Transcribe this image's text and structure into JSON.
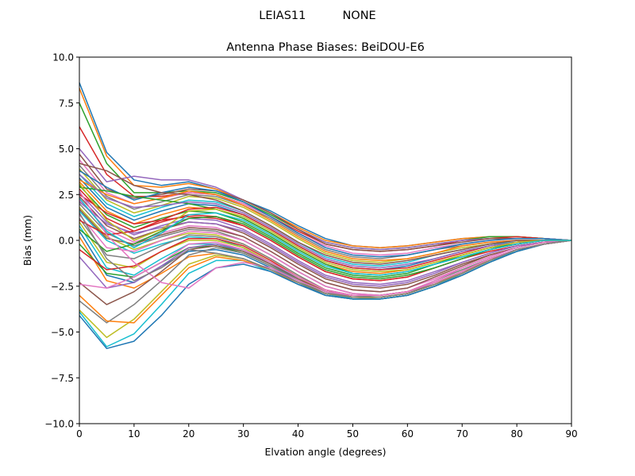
{
  "suptitle": "LEIAS11          NONE",
  "chart_data": {
    "type": "line",
    "title": "Antenna Phase Biases: BeiDOU-E6",
    "xlabel": "Elvation angle (degrees)",
    "ylabel": "Bias (mm)",
    "xlim": [
      0,
      90
    ],
    "ylim": [
      -10,
      10
    ],
    "xticks": [
      0,
      10,
      20,
      30,
      40,
      50,
      60,
      70,
      80,
      90
    ],
    "xtick_labels": [
      "0",
      "10",
      "20",
      "30",
      "40",
      "50",
      "60",
      "70",
      "80",
      "90"
    ],
    "yticks": [
      -10,
      -7.5,
      -5,
      -2.5,
      0,
      2.5,
      5,
      7.5,
      10
    ],
    "ytick_labels": [
      "−10.0",
      "−7.5",
      "−5.0",
      "−2.5",
      "0.0",
      "2.5",
      "5.0",
      "7.5",
      "10.0"
    ],
    "grid": false,
    "legend": "none",
    "palette": [
      "#1f77b4",
      "#ff7f0e",
      "#2ca02c",
      "#d62728",
      "#9467bd",
      "#8c564b",
      "#e377c2",
      "#7f7f7f",
      "#bcbd22",
      "#17becf"
    ],
    "x": [
      0,
      5,
      10,
      15,
      20,
      25,
      30,
      35,
      40,
      45,
      50,
      55,
      60,
      65,
      70,
      75,
      80,
      85,
      90
    ],
    "series": [
      {
        "values": [
          8.6,
          4.8,
          3.3,
          3.0,
          3.2,
          2.8,
          2.2,
          1.6,
          0.8,
          0.1,
          -0.3,
          -0.4,
          -0.3,
          -0.1,
          0.1,
          0.2,
          0.2,
          0.1,
          0.0
        ]
      },
      {
        "values": [
          8.3,
          4.6,
          3.0,
          2.9,
          3.1,
          2.8,
          2.2,
          1.5,
          0.7,
          0.0,
          -0.3,
          -0.4,
          -0.3,
          -0.1,
          0.1,
          0.2,
          0.2,
          0.1,
          0.0
        ]
      },
      {
        "values": [
          7.5,
          4.2,
          2.6,
          2.6,
          2.7,
          2.6,
          2.1,
          1.4,
          0.6,
          -0.1,
          -0.4,
          -0.5,
          -0.4,
          -0.2,
          0.0,
          0.2,
          0.2,
          0.1,
          0.0
        ]
      },
      {
        "values": [
          6.2,
          3.6,
          2.4,
          2.4,
          2.6,
          2.5,
          2.0,
          1.3,
          0.5,
          -0.2,
          -0.5,
          -0.6,
          -0.5,
          -0.3,
          0.0,
          0.1,
          0.2,
          0.1,
          0.0
        ]
      },
      {
        "values": [
          5.0,
          3.2,
          3.5,
          3.3,
          3.3,
          2.9,
          2.2,
          1.5,
          0.6,
          -0.1,
          -0.4,
          -0.5,
          -0.4,
          -0.2,
          0.0,
          0.1,
          0.1,
          0.1,
          0.0
        ]
      },
      {
        "values": [
          4.7,
          2.8,
          2.3,
          2.5,
          2.8,
          2.7,
          2.2,
          1.5,
          0.6,
          -0.2,
          -0.5,
          -0.6,
          -0.5,
          -0.3,
          -0.1,
          0.1,
          0.1,
          0.1,
          0.0
        ]
      },
      {
        "values": [
          4.4,
          2.6,
          2.0,
          2.3,
          2.6,
          2.5,
          2.0,
          1.3,
          0.4,
          -0.3,
          -0.7,
          -0.8,
          -0.7,
          -0.4,
          -0.2,
          0.0,
          0.1,
          0.1,
          0.0
        ]
      },
      {
        "values": [
          4.1,
          2.4,
          1.7,
          2.1,
          2.5,
          2.4,
          1.9,
          1.2,
          0.3,
          -0.5,
          -0.9,
          -1.0,
          -0.8,
          -0.5,
          -0.3,
          -0.1,
          0.0,
          0.0,
          0.0
        ]
      },
      {
        "values": [
          3.9,
          2.2,
          1.5,
          1.9,
          2.4,
          2.3,
          1.8,
          1.0,
          0.1,
          -0.7,
          -1.1,
          -1.2,
          -1.0,
          -0.7,
          -0.4,
          -0.2,
          -0.1,
          0.0,
          0.0
        ]
      },
      {
        "values": [
          3.6,
          2.0,
          1.3,
          1.8,
          2.2,
          2.1,
          1.6,
          0.8,
          -0.1,
          -0.9,
          -1.3,
          -1.4,
          -1.2,
          -0.8,
          -0.5,
          -0.2,
          -0.1,
          0.0,
          0.0
        ]
      },
      {
        "values": [
          3.4,
          1.8,
          1.1,
          1.6,
          2.0,
          1.9,
          1.4,
          0.6,
          -0.3,
          -1.1,
          -1.5,
          -1.6,
          -1.4,
          -1.0,
          -0.6,
          -0.3,
          -0.1,
          0.0,
          0.0
        ]
      },
      {
        "values": [
          3.2,
          1.6,
          0.9,
          1.4,
          1.8,
          1.7,
          1.2,
          0.4,
          -0.5,
          -1.3,
          -1.7,
          -1.8,
          -1.6,
          -1.2,
          -0.8,
          -0.4,
          -0.2,
          0.0,
          0.0
        ]
      },
      {
        "values": [
          3.0,
          1.4,
          0.7,
          1.2,
          1.6,
          1.5,
          1.0,
          0.2,
          -0.7,
          -1.5,
          -1.9,
          -2.0,
          -1.8,
          -1.3,
          -0.9,
          -0.5,
          -0.2,
          0.0,
          0.0
        ]
      },
      {
        "values": [
          2.8,
          1.2,
          0.5,
          1.0,
          1.4,
          1.3,
          0.8,
          0.0,
          -0.9,
          -1.7,
          -2.1,
          -2.2,
          -2.0,
          -1.5,
          -1.0,
          -0.6,
          -0.3,
          -0.1,
          0.0
        ]
      },
      {
        "values": [
          2.6,
          1.0,
          0.3,
          0.8,
          1.2,
          1.1,
          0.6,
          -0.2,
          -1.1,
          -1.9,
          -2.3,
          -2.4,
          -2.2,
          -1.7,
          -1.2,
          -0.7,
          -0.3,
          -0.1,
          0.0
        ]
      },
      {
        "values": [
          2.4,
          0.8,
          0.1,
          0.6,
          1.0,
          0.9,
          0.4,
          -0.4,
          -1.3,
          -2.1,
          -2.5,
          -2.6,
          -2.4,
          -1.9,
          -1.3,
          -0.8,
          -0.4,
          -0.1,
          0.0
        ]
      },
      {
        "values": [
          2.2,
          0.6,
          -0.1,
          0.4,
          0.8,
          0.7,
          0.2,
          -0.6,
          -1.5,
          -2.3,
          -2.7,
          -2.8,
          -2.6,
          -2.1,
          -1.5,
          -0.9,
          -0.4,
          -0.1,
          0.0
        ]
      },
      {
        "values": [
          2.0,
          0.4,
          -0.3,
          0.2,
          0.6,
          0.5,
          0.0,
          -0.8,
          -1.7,
          -2.5,
          -2.9,
          -3.0,
          -2.8,
          -2.2,
          -1.6,
          -1.0,
          -0.5,
          -0.2,
          0.0
        ]
      },
      {
        "values": [
          1.8,
          0.2,
          -0.5,
          0.0,
          0.4,
          0.3,
          -0.2,
          -1.0,
          -1.9,
          -2.7,
          -3.1,
          -3.1,
          -2.9,
          -2.4,
          -1.7,
          -1.1,
          -0.5,
          -0.2,
          0.0
        ]
      },
      {
        "values": [
          1.6,
          0.0,
          -0.7,
          -0.2,
          0.2,
          0.1,
          -0.4,
          -1.2,
          -2.1,
          -2.8,
          -3.2,
          -3.2,
          -3.0,
          -2.5,
          -1.8,
          -1.1,
          -0.6,
          -0.2,
          0.0
        ]
      },
      {
        "values": [
          3.8,
          2.9,
          2.2,
          2.6,
          2.9,
          2.7,
          2.1,
          1.3,
          0.4,
          -0.4,
          -0.8,
          -0.9,
          -0.8,
          -0.5,
          -0.2,
          0.0,
          0.1,
          0.1,
          0.0
        ]
      },
      {
        "values": [
          3.3,
          2.5,
          2.0,
          2.3,
          2.7,
          2.5,
          1.9,
          1.1,
          0.2,
          -0.6,
          -1.0,
          -1.1,
          -1.0,
          -0.7,
          -0.3,
          -0.1,
          0.0,
          0.0,
          0.0
        ]
      },
      {
        "values": [
          2.9,
          2.7,
          2.4,
          2.2,
          2.0,
          1.7,
          1.2,
          0.4,
          -0.5,
          -1.3,
          -1.8,
          -1.9,
          -1.7,
          -1.3,
          -0.8,
          -0.4,
          -0.2,
          0.0,
          0.0
        ]
      },
      {
        "values": [
          2.5,
          1.5,
          0.9,
          1.1,
          1.3,
          1.2,
          0.8,
          0.0,
          -0.9,
          -1.7,
          -2.1,
          -2.2,
          -2.0,
          -1.5,
          -1.0,
          -0.5,
          -0.2,
          0.0,
          0.0
        ]
      },
      {
        "values": [
          2.1,
          0.9,
          0.4,
          0.7,
          1.0,
          0.9,
          0.5,
          -0.3,
          -1.2,
          -2.0,
          -2.4,
          -2.5,
          -2.3,
          -1.8,
          -1.2,
          -0.7,
          -0.3,
          -0.1,
          0.0
        ]
      },
      {
        "values": [
          1.7,
          0.1,
          -0.2,
          0.3,
          0.7,
          0.6,
          0.2,
          -0.6,
          -1.5,
          -2.3,
          -2.7,
          -2.8,
          -2.6,
          -2.0,
          -1.4,
          -0.8,
          -0.4,
          -0.1,
          0.0
        ]
      },
      {
        "values": [
          1.4,
          -0.4,
          -0.6,
          0.0,
          0.5,
          0.4,
          0.0,
          -0.8,
          -1.7,
          -2.5,
          -2.9,
          -3.0,
          -2.8,
          -2.2,
          -1.5,
          -0.9,
          -0.4,
          -0.1,
          0.0
        ]
      },
      {
        "values": [
          1.2,
          -0.8,
          -1.0,
          -0.3,
          0.3,
          0.2,
          -0.2,
          -1.0,
          -1.9,
          -2.7,
          -3.0,
          -3.1,
          -2.9,
          -2.3,
          -1.7,
          -1.0,
          -0.5,
          -0.2,
          0.0
        ]
      },
      {
        "values": [
          1.0,
          -1.2,
          -1.5,
          -0.6,
          0.0,
          0.0,
          -0.4,
          -1.2,
          -2.0,
          -2.8,
          -3.1,
          -3.2,
          -3.0,
          -2.5,
          -1.8,
          -1.1,
          -0.5,
          -0.2,
          0.0
        ]
      },
      {
        "values": [
          0.8,
          -1.5,
          -1.9,
          -1.0,
          -0.2,
          -0.2,
          -0.6,
          -1.3,
          -2.2,
          -2.9,
          -3.2,
          -3.2,
          -3.0,
          -2.5,
          -1.8,
          -1.1,
          -0.6,
          -0.2,
          0.0
        ]
      },
      {
        "values": [
          0.5,
          -1.9,
          -2.3,
          -1.4,
          -0.6,
          -0.5,
          -0.8,
          -1.5,
          -2.3,
          -3.0,
          -3.2,
          -3.2,
          -3.0,
          -2.5,
          -1.9,
          -1.2,
          -0.6,
          -0.2,
          0.0
        ]
      },
      {
        "values": [
          0.2,
          -2.2,
          -2.6,
          -1.8,
          -0.9,
          -0.7,
          -1.0,
          -1.6,
          -2.4,
          -3.0,
          -3.2,
          -3.2,
          -3.0,
          -2.5,
          -1.9,
          -1.2,
          -0.6,
          -0.2,
          0.0
        ]
      },
      {
        "values": [
          -0.2,
          -1.8,
          -2.0,
          -1.2,
          -0.4,
          -0.3,
          -0.7,
          -1.4,
          -2.2,
          -2.9,
          -3.1,
          -3.1,
          -2.9,
          -2.4,
          -1.8,
          -1.1,
          -0.5,
          -0.2,
          0.0
        ]
      },
      {
        "values": [
          -0.5,
          -1.6,
          -1.4,
          -0.6,
          0.1,
          0.1,
          -0.3,
          -1.1,
          -2.0,
          -2.7,
          -3.0,
          -3.0,
          -2.8,
          -2.3,
          -1.7,
          -1.0,
          -0.5,
          -0.2,
          0.0
        ]
      },
      {
        "values": [
          -0.9,
          -2.6,
          -2.3,
          -1.4,
          -0.4,
          -0.2,
          -0.5,
          -1.3,
          -2.1,
          -2.8,
          -3.1,
          -3.1,
          -2.9,
          -2.4,
          -1.8,
          -1.1,
          -0.5,
          -0.2,
          0.0
        ]
      },
      {
        "values": [
          -2.3,
          -3.5,
          -2.8,
          -1.7,
          -0.5,
          -0.3,
          -0.6,
          -1.3,
          -2.1,
          -2.8,
          -3.0,
          -3.0,
          -2.8,
          -2.3,
          -1.7,
          -1.0,
          -0.5,
          -0.2,
          0.0
        ]
      },
      {
        "values": [
          -2.4,
          -2.6,
          -2.0,
          -1.2,
          -0.2,
          -0.1,
          -0.5,
          -1.2,
          -2.0,
          -2.7,
          -3.0,
          -3.0,
          -2.8,
          -2.3,
          -1.7,
          -1.0,
          -0.5,
          -0.2,
          0.0
        ]
      },
      {
        "values": [
          -3.3,
          -4.5,
          -3.5,
          -2.2,
          -0.8,
          -0.4,
          -0.7,
          -1.4,
          -2.2,
          -2.8,
          -3.1,
          -3.1,
          -2.9,
          -2.4,
          -1.8,
          -1.1,
          -0.5,
          -0.2,
          0.0
        ]
      },
      {
        "values": [
          -3.8,
          -5.3,
          -4.3,
          -2.8,
          -1.3,
          -0.8,
          -1.0,
          -1.6,
          -2.3,
          -2.9,
          -3.1,
          -3.1,
          -2.9,
          -2.4,
          -1.8,
          -1.1,
          -0.5,
          -0.2,
          0.0
        ]
      },
      {
        "values": [
          -3.9,
          -5.8,
          -5.1,
          -3.5,
          -1.8,
          -1.1,
          -1.1,
          -1.7,
          -2.4,
          -3.0,
          -3.2,
          -3.2,
          -3.0,
          -2.5,
          -1.9,
          -1.2,
          -0.6,
          -0.2,
          0.0
        ]
      },
      {
        "values": [
          -4.1,
          -5.9,
          -5.5,
          -4.1,
          -2.4,
          -1.5,
          -1.3,
          -1.7,
          -2.4,
          -3.0,
          -3.2,
          -3.2,
          -3.0,
          -2.5,
          -1.9,
          -1.2,
          -0.6,
          -0.2,
          0.0
        ]
      },
      {
        "values": [
          -3.0,
          -4.4,
          -4.5,
          -3.0,
          -1.5,
          -0.9,
          -1.1,
          -1.6,
          -2.3,
          -2.9,
          -3.1,
          -3.1,
          -2.9,
          -2.4,
          -1.8,
          -1.1,
          -0.5,
          -0.2,
          0.0
        ]
      },
      {
        "values": [
          0.6,
          -0.6,
          -0.2,
          0.5,
          1.2,
          1.3,
          0.9,
          0.1,
          -0.8,
          -1.6,
          -2.0,
          -2.1,
          -1.9,
          -1.5,
          -1.0,
          -0.5,
          -0.2,
          0.0,
          0.0
        ]
      },
      {
        "values": [
          1.1,
          0.3,
          0.5,
          1.1,
          1.7,
          1.8,
          1.4,
          0.6,
          -0.3,
          -1.1,
          -1.5,
          -1.6,
          -1.5,
          -1.1,
          -0.7,
          -0.3,
          -0.1,
          0.0,
          0.0
        ]
      },
      {
        "values": [
          3.6,
          2.3,
          1.8,
          1.9,
          2.1,
          2.0,
          1.5,
          0.7,
          -0.2,
          -1.0,
          -1.4,
          -1.5,
          -1.3,
          -1.0,
          -0.6,
          -0.3,
          -0.1,
          0.0,
          0.0
        ]
      },
      {
        "values": [
          4.2,
          3.8,
          3.0,
          2.6,
          2.5,
          2.2,
          1.6,
          0.8,
          -0.1,
          -0.8,
          -1.2,
          -1.3,
          -1.1,
          -0.8,
          -0.5,
          -0.2,
          0.0,
          0.0,
          0.0
        ]
      },
      {
        "values": [
          2.7,
          0.3,
          -1.2,
          -2.3,
          -2.6,
          -1.5,
          -1.2,
          -1.5,
          -2.2,
          -2.8,
          -3.0,
          -3.0,
          -2.8,
          -2.3,
          -1.7,
          -1.0,
          -0.5,
          -0.2,
          0.0
        ]
      },
      {
        "values": [
          1.5,
          -1.0,
          -2.2,
          -1.5,
          -0.5,
          -0.7,
          -1.0,
          -1.6,
          -2.3,
          -2.9,
          -3.1,
          -3.1,
          -2.9,
          -2.4,
          -1.8,
          -1.1,
          -0.5,
          -0.2,
          0.0
        ]
      },
      {
        "values": [
          3.1,
          1.1,
          0.0,
          0.6,
          1.6,
          1.7,
          1.3,
          0.5,
          -0.4,
          -1.2,
          -1.6,
          -1.7,
          -1.6,
          -1.2,
          -0.8,
          -0.4,
          -0.1,
          0.0,
          0.0
        ]
      },
      {
        "values": [
          2.3,
          0.5,
          -0.4,
          0.4,
          1.4,
          1.5,
          1.1,
          0.3,
          -0.6,
          -1.4,
          -1.8,
          -1.9,
          -1.7,
          -1.3,
          -0.9,
          -0.5,
          -0.2,
          0.0,
          0.0
        ]
      }
    ]
  }
}
